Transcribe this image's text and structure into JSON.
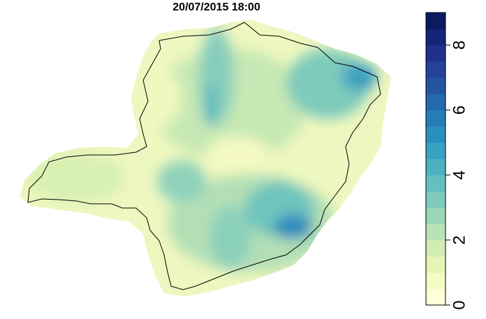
{
  "title": "20/07/2015 18:00",
  "legend": {
    "min": 0,
    "max": 9,
    "ticks": [
      "0",
      "2",
      "4",
      "6",
      "8"
    ],
    "tick_values": [
      0,
      2,
      4,
      6,
      8
    ],
    "levels": 18,
    "palette": [
      "#ffffd9",
      "#f4fbc4",
      "#e6f5b5",
      "#d2edb3",
      "#b9e3b6",
      "#9bd7b9",
      "#7fcbbb",
      "#63c0bf",
      "#4ab2c2",
      "#37a2c2",
      "#2a8fbd",
      "#247db7",
      "#2269ae",
      "#2355a3",
      "#244299",
      "#20308d",
      "#152479",
      "#0c1a5f"
    ]
  },
  "map": {
    "region_colors": {
      "low": "#f3f9c3",
      "mid": "#b3dfb5",
      "high": "#5fb9c2",
      "peak": "#2c7fb8"
    }
  }
}
